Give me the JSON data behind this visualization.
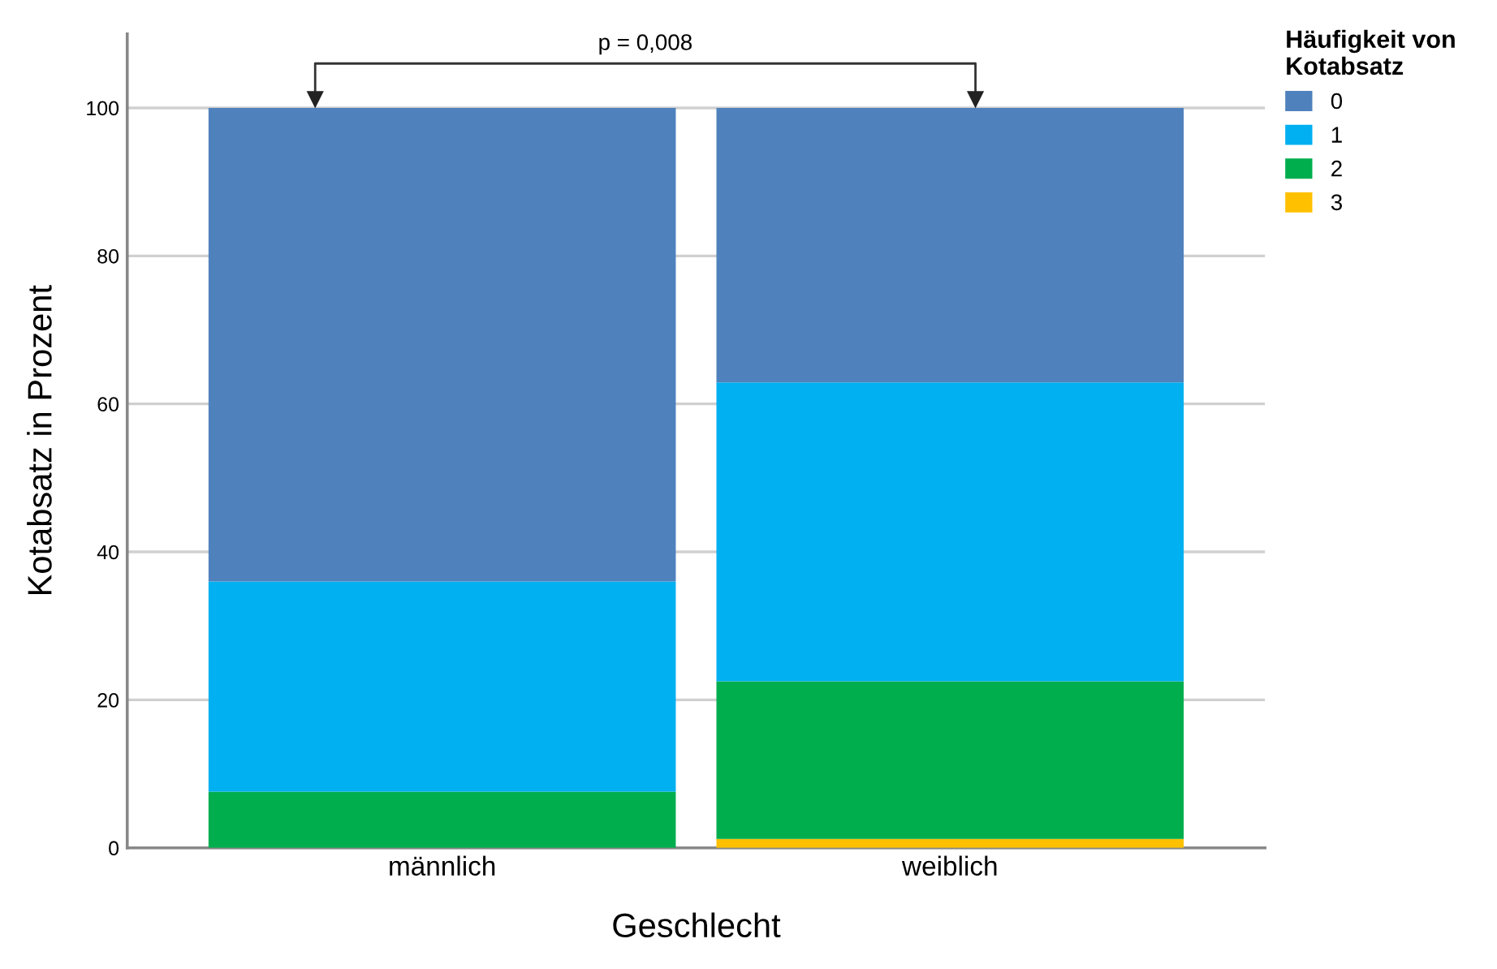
{
  "chart_data": {
    "type": "bar",
    "stacked": true,
    "xlabel": "Geschlecht",
    "ylabel": "Kotabsatz in Prozent",
    "legend_title": "Häufigkeit von\nKotabsatz",
    "categories": [
      "männlich",
      "weiblich"
    ],
    "series": [
      {
        "name": "3",
        "color": "#ffc000",
        "values": [
          0,
          1.2
        ]
      },
      {
        "name": "2",
        "color": "#00ae4e",
        "values": [
          7.6,
          21.3
        ]
      },
      {
        "name": "1",
        "color": "#00b0f0",
        "values": [
          28.4,
          40.4
        ]
      },
      {
        "name": "0",
        "color": "#4f81bd",
        "values": [
          64.0,
          37.1
        ]
      }
    ],
    "ylim": [
      0,
      110
    ],
    "yticks": [
      0,
      20,
      40,
      60,
      80,
      100
    ],
    "grid": "y",
    "legend": "top right",
    "annotations": [
      "p = 0,008"
    ]
  }
}
